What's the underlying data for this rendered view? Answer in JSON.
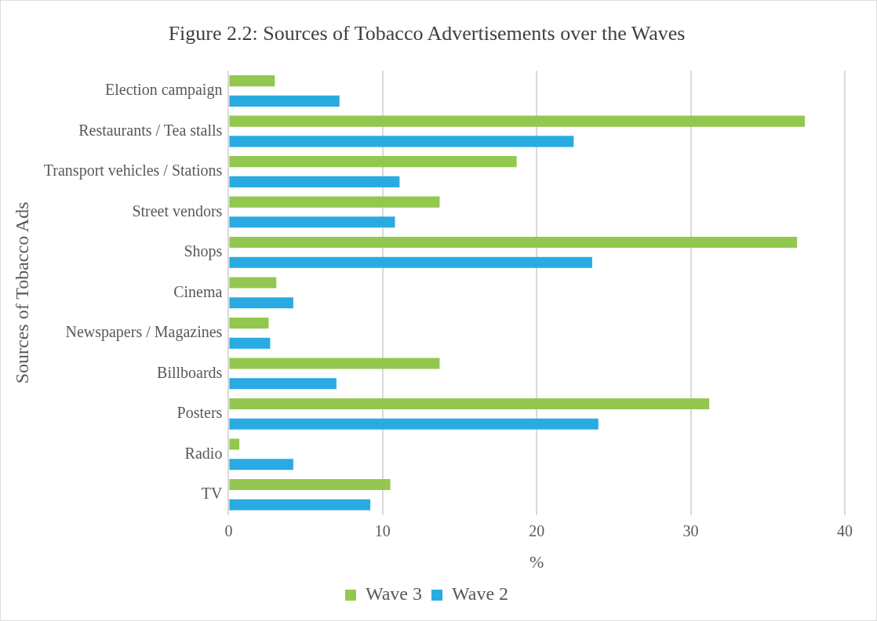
{
  "chart_data": {
    "type": "bar",
    "orientation": "horizontal",
    "title": "Figure 2.2: Sources of Tobacco Advertisements over the Waves",
    "xlabel": "%",
    "ylabel": "Sources of Tobacco Ads",
    "categories": [
      "Election campaign",
      "Restaurants / Tea stalls",
      "Transport vehicles / Stations",
      "Street vendors",
      "Shops",
      "Cinema",
      "Newspapers / Magazines",
      "Billboards",
      "Posters",
      "Radio",
      "TV"
    ],
    "series": [
      {
        "name": "Wave 3",
        "color": "#92c84f",
        "values": [
          3.0,
          37.4,
          18.7,
          13.7,
          36.9,
          3.1,
          2.6,
          13.7,
          31.2,
          0.7,
          10.5
        ]
      },
      {
        "name": "Wave 2",
        "color": "#29abe2",
        "values": [
          7.2,
          22.4,
          11.1,
          10.8,
          23.6,
          4.2,
          2.7,
          7.0,
          24.0,
          4.2,
          9.2
        ]
      }
    ],
    "xlim": [
      0,
      40
    ],
    "xticks": [
      0,
      10,
      20,
      30,
      40
    ],
    "grid": "x",
    "legend": "bottom"
  }
}
